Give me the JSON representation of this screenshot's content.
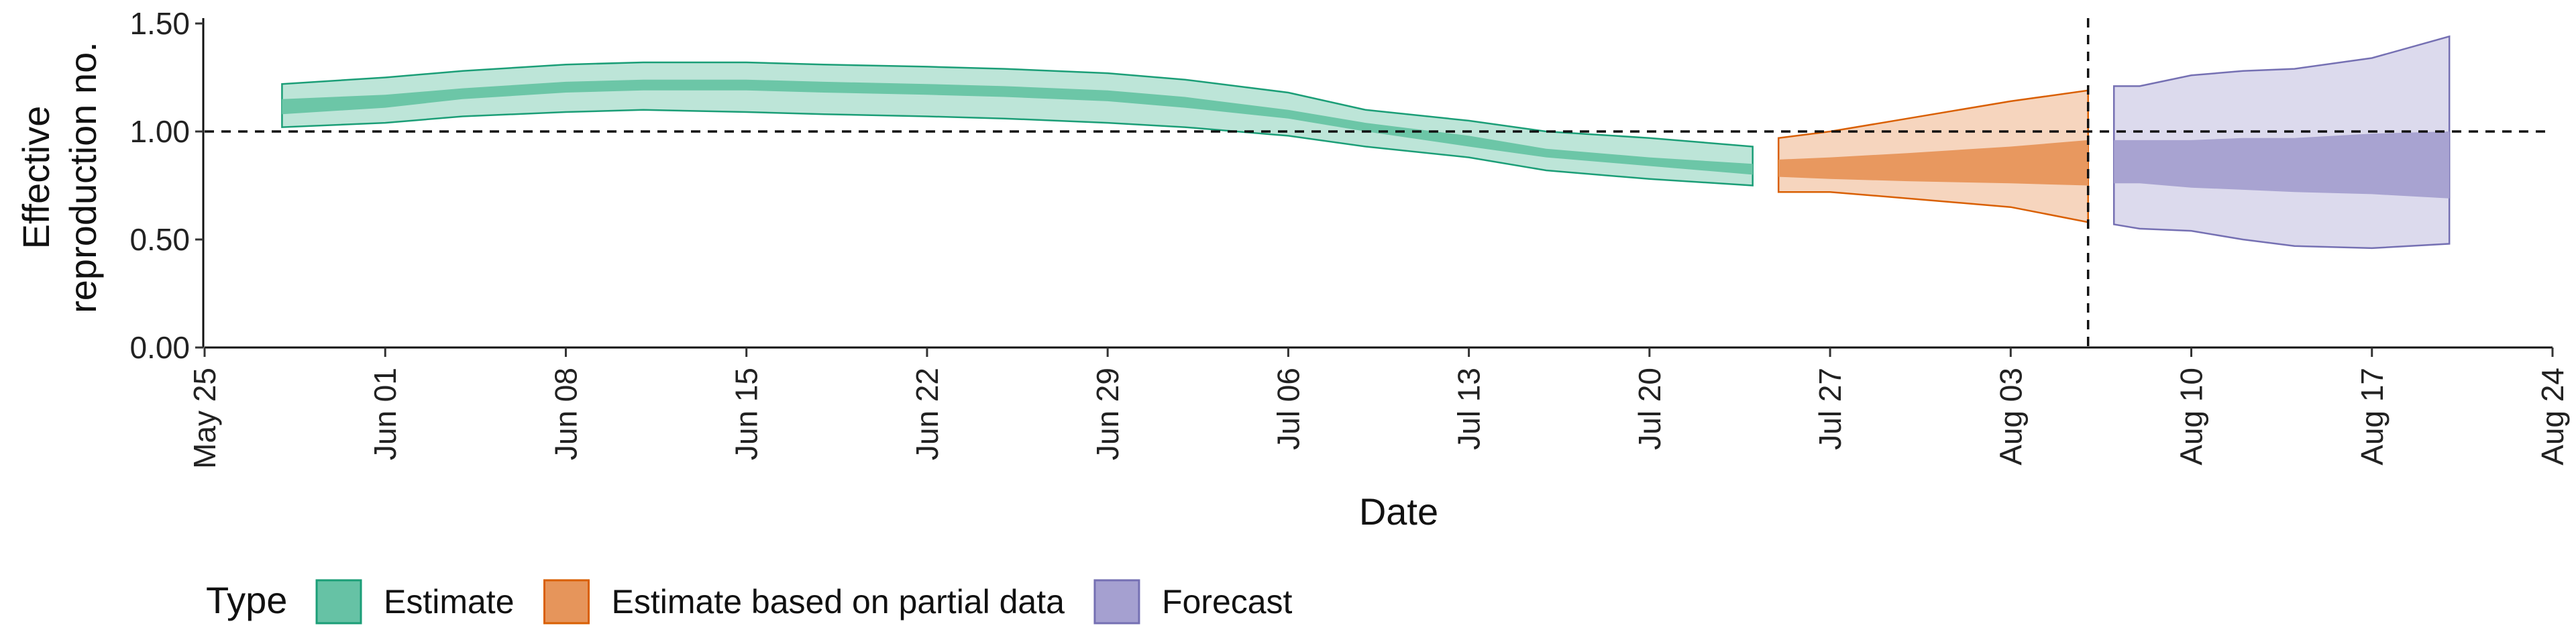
{
  "chart_data": {
    "type": "area",
    "xlabel": "Date",
    "ylabel_lines": [
      "Effective",
      "reproduction no."
    ],
    "xlim": [
      "2020-05-25",
      "2020-08-24"
    ],
    "ylim": [
      0,
      1.5
    ],
    "y_ticks": [
      0,
      0.5,
      1.0,
      1.5
    ],
    "y_tick_labels": [
      "0.00",
      "0.50",
      "1.00",
      "1.50"
    ],
    "x_ticks": [
      "2020-05-25",
      "2020-06-01",
      "2020-06-08",
      "2020-06-15",
      "2020-06-22",
      "2020-06-29",
      "2020-07-06",
      "2020-07-13",
      "2020-07-20",
      "2020-07-27",
      "2020-08-03",
      "2020-08-10",
      "2020-08-17",
      "2020-08-24"
    ],
    "x_tick_labels": [
      "May 25",
      "Jun 01",
      "Jun 08",
      "Jun 15",
      "Jun 22",
      "Jun 29",
      "Jul 06",
      "Jul 13",
      "Jul 20",
      "Jul 27",
      "Aug 03",
      "Aug 10",
      "Aug 17",
      "Aug 24"
    ],
    "reference_line_y": 1.0,
    "vertical_line_date": "2020-08-06",
    "grid": false,
    "legend": {
      "title": "Type",
      "position": "bottom",
      "entries": [
        {
          "label": "Estimate",
          "fill": "#66c2a5",
          "stroke": "#1b9e77"
        },
        {
          "label": "Estimate based on partial data",
          "fill": "#e6955b",
          "stroke": "#d95f02"
        },
        {
          "label": "Forecast",
          "fill": "#a5a0d0",
          "stroke": "#7570b3"
        }
      ]
    },
    "series": [
      {
        "name": "Estimate",
        "color": "#1b9e77",
        "outer_fill": "#bde5d8",
        "inner_fill": "#6cc6a7",
        "x": [
          "2020-05-28",
          "2020-06-01",
          "2020-06-04",
          "2020-06-08",
          "2020-06-11",
          "2020-06-15",
          "2020-06-18",
          "2020-06-22",
          "2020-06-25",
          "2020-06-29",
          "2020-07-02",
          "2020-07-06",
          "2020-07-09",
          "2020-07-13",
          "2020-07-16",
          "2020-07-20",
          "2020-07-24"
        ],
        "outer_lower": [
          1.02,
          1.04,
          1.07,
          1.09,
          1.1,
          1.09,
          1.08,
          1.07,
          1.06,
          1.04,
          1.02,
          0.98,
          0.93,
          0.88,
          0.82,
          0.78,
          0.75
        ],
        "outer_upper": [
          1.22,
          1.25,
          1.28,
          1.31,
          1.32,
          1.32,
          1.31,
          1.3,
          1.29,
          1.27,
          1.24,
          1.18,
          1.1,
          1.05,
          1.0,
          0.97,
          0.93
        ],
        "inner_lower": [
          1.08,
          1.11,
          1.15,
          1.18,
          1.19,
          1.19,
          1.18,
          1.17,
          1.16,
          1.14,
          1.11,
          1.06,
          1.0,
          0.93,
          0.88,
          0.84,
          0.8
        ],
        "inner_upper": [
          1.15,
          1.17,
          1.2,
          1.23,
          1.24,
          1.24,
          1.23,
          1.22,
          1.21,
          1.19,
          1.16,
          1.1,
          1.04,
          0.98,
          0.92,
          0.88,
          0.85
        ]
      },
      {
        "name": "Estimate based on partial data",
        "color": "#d95f02",
        "outer_fill": "#f6d5be",
        "inner_fill": "#e8985f",
        "x": [
          "2020-07-25",
          "2020-07-27",
          "2020-07-30",
          "2020-08-03",
          "2020-08-06"
        ],
        "outer_lower": [
          0.72,
          0.72,
          0.69,
          0.65,
          0.58
        ],
        "outer_upper": [
          0.97,
          1.0,
          1.06,
          1.14,
          1.19
        ],
        "inner_lower": [
          0.79,
          0.78,
          0.77,
          0.76,
          0.75
        ],
        "inner_upper": [
          0.87,
          0.88,
          0.9,
          0.93,
          0.96
        ]
      },
      {
        "name": "Forecast",
        "color": "#7570b3",
        "outer_fill": "#dcdaed",
        "inner_fill": "#a8a3d1",
        "x": [
          "2020-08-07",
          "2020-08-08",
          "2020-08-10",
          "2020-08-12",
          "2020-08-14",
          "2020-08-17",
          "2020-08-20"
        ],
        "outer_lower": [
          0.57,
          0.55,
          0.54,
          0.5,
          0.47,
          0.46,
          0.48
        ],
        "outer_upper": [
          1.21,
          1.21,
          1.26,
          1.28,
          1.29,
          1.34,
          1.44
        ],
        "inner_lower": [
          0.76,
          0.76,
          0.74,
          0.73,
          0.72,
          0.71,
          0.69
        ],
        "inner_upper": [
          0.96,
          0.96,
          0.96,
          0.97,
          0.97,
          0.99,
          1.0
        ]
      }
    ]
  }
}
